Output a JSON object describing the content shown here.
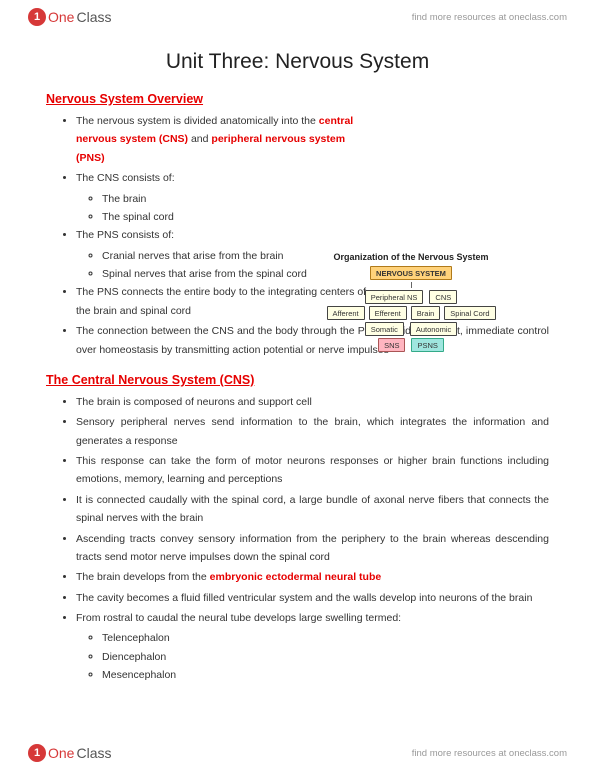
{
  "brand": {
    "icon_letter": "1",
    "word_one": "One",
    "word_class": "Class",
    "tagline": "find more resources at oneclass.com"
  },
  "title": "Unit Three: Nervous System",
  "sections": {
    "overview": {
      "heading": "Nervous System Overview",
      "li1_a": "The nervous system is divided anatomically into the ",
      "li1_b": "central nervous system (CNS)",
      "li1_c": " and ",
      "li1_d": "peripheral nervous system (PNS)",
      "li2": "The CNS consists of:",
      "li2a": "The brain",
      "li2b": "The spinal cord",
      "li3": "The PNS consists of:",
      "li3a": "Cranial nerves that arise from the brain",
      "li3b": "Spinal nerves that arise from the spinal cord",
      "li4": "The PNS connects the entire body to the integrating centers of the brain and spinal cord",
      "li5": "The connection between the CNS and the body through the PNS provides the fast, immediate control over homeostasis by transmitting action potential or nerve impulses"
    },
    "cns": {
      "heading": "The Central Nervous System (CNS)",
      "li1": "The brain is composed of neurons and support cell",
      "li2": "Sensory peripheral nerves send information to the brain, which integrates the information and generates a response",
      "li3": "This response can take the form of motor neurons responses or higher brain functions including emotions, memory, learning and perceptions",
      "li4": "It is connected caudally with the spinal cord, a large bundle of axonal nerve fibers that connects the spinal nerves with the brain",
      "li5": "Ascending tracts convey sensory information from the periphery to the brain whereas descending tracts send motor nerve impulses down the spinal cord",
      "li6_a": "The brain develops from the ",
      "li6_b": "embryonic ectodermal neural tube",
      "li7": "The cavity becomes a fluid filled ventricular system and the walls develop into neurons of the brain",
      "li8": "From rostral to caudal the neural tube develops large swelling termed:",
      "li8a": "Telencephalon",
      "li8b": "Diencephalon",
      "li8c": "Mesencephalon"
    }
  },
  "diagram": {
    "title": "Organization of the Nervous System",
    "root": "NERVOUS SYSTEM",
    "row2": {
      "a": "Peripheral NS",
      "b": "CNS"
    },
    "row3": {
      "a": "Afferent",
      "b": "Efferent",
      "c": "Brain",
      "d": "Spinal Cord"
    },
    "row4": {
      "a": "Somatic",
      "b": "Autonomic"
    },
    "row5": {
      "a": "SNS",
      "b": "PSNS"
    },
    "colors": {
      "orange": "#ffd27a",
      "cream": "#ffffe4",
      "pink": "#ffb5c0",
      "teal": "#9fe6df"
    }
  }
}
